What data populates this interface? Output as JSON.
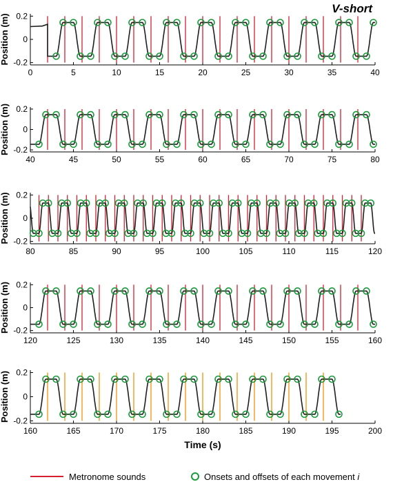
{
  "chart_data": {
    "type": "line",
    "title": "V-short",
    "xlabel": "Time (s)",
    "ylabel": "Position (m)",
    "ylim": [
      -0.22,
      0.22
    ],
    "yticks": [
      -0.2,
      0,
      0.2
    ],
    "ytick_labels": [
      "-0.2",
      "0",
      "0.2"
    ],
    "panels": [
      {
        "xlim": [
          0,
          40
        ],
        "xticks": [
          0,
          5,
          10,
          15,
          20,
          25,
          30,
          35,
          40
        ],
        "xtick_labels": [
          "0",
          "5",
          "10",
          "15",
          "20",
          "25",
          "30",
          "35",
          "40"
        ],
        "metronome_start": 2,
        "metronome_period": 2,
        "metronome_end": 39,
        "metronome_color": "#d62030",
        "signal_start": 2,
        "signal_end": 40,
        "signal_period": 4,
        "amplitude": 0.145,
        "show_xlabel": false
      },
      {
        "xlim": [
          40,
          80
        ],
        "xticks": [
          40,
          45,
          50,
          55,
          60,
          65,
          70,
          75,
          80
        ],
        "xtick_labels": [
          "40",
          "45",
          "50",
          "55",
          "60",
          "65",
          "70",
          "75",
          "80"
        ],
        "metronome_start": 42,
        "metronome_period": 2,
        "metronome_end": 79,
        "metronome_color": "#d62030",
        "signal_start": 40,
        "signal_end": 80,
        "signal_period": 4,
        "amplitude": 0.145,
        "show_xlabel": false
      },
      {
        "xlim": [
          80,
          120
        ],
        "xticks": [
          80,
          85,
          90,
          95,
          100,
          105,
          110,
          115,
          120
        ],
        "xtick_labels": [
          "80",
          "85",
          "90",
          "95",
          "100",
          "105",
          "110",
          "115",
          "120"
        ],
        "metronome_start": 81,
        "metronome_period": 1.1,
        "metronome_end": 119,
        "metronome_color": "#d62030",
        "signal_start": 80,
        "signal_end": 120,
        "signal_period": 2.2,
        "amplitude": 0.13,
        "show_xlabel": false
      },
      {
        "xlim": [
          120,
          160
        ],
        "xticks": [
          120,
          125,
          130,
          135,
          140,
          145,
          150,
          155,
          160
        ],
        "xtick_labels": [
          "120",
          "125",
          "130",
          "135",
          "140",
          "145",
          "150",
          "155",
          "160"
        ],
        "metronome_start": 122,
        "metronome_period": 2,
        "metronome_end": 159,
        "metronome_color": "#d62030",
        "signal_start": 120,
        "signal_end": 160,
        "signal_period": 4,
        "amplitude": 0.145,
        "show_xlabel": false
      },
      {
        "xlim": [
          160,
          200
        ],
        "xticks": [
          160,
          165,
          170,
          175,
          180,
          185,
          190,
          195,
          200
        ],
        "xtick_labels": [
          "160",
          "165",
          "170",
          "175",
          "180",
          "185",
          "190",
          "195",
          "200"
        ],
        "metronome_start": 162,
        "metronome_period": 2,
        "metronome_end": 195,
        "metronome_color": "#f0900a",
        "signal_start": 160,
        "signal_end": 196,
        "signal_period": 4,
        "amplitude": 0.145,
        "show_xlabel": true
      }
    ],
    "series_colors": {
      "position": "#1e1e1e",
      "onsets_offsets": "#1a9a3a"
    },
    "legend": [
      {
        "label": "Metronome sounds",
        "type": "line",
        "color": "#d62030"
      },
      {
        "label": "Onsets and offsets of each movement",
        "suffix": "i",
        "type": "circle",
        "color": "#1a9a3a"
      }
    ],
    "legend_position": "bottom",
    "grid": false
  }
}
